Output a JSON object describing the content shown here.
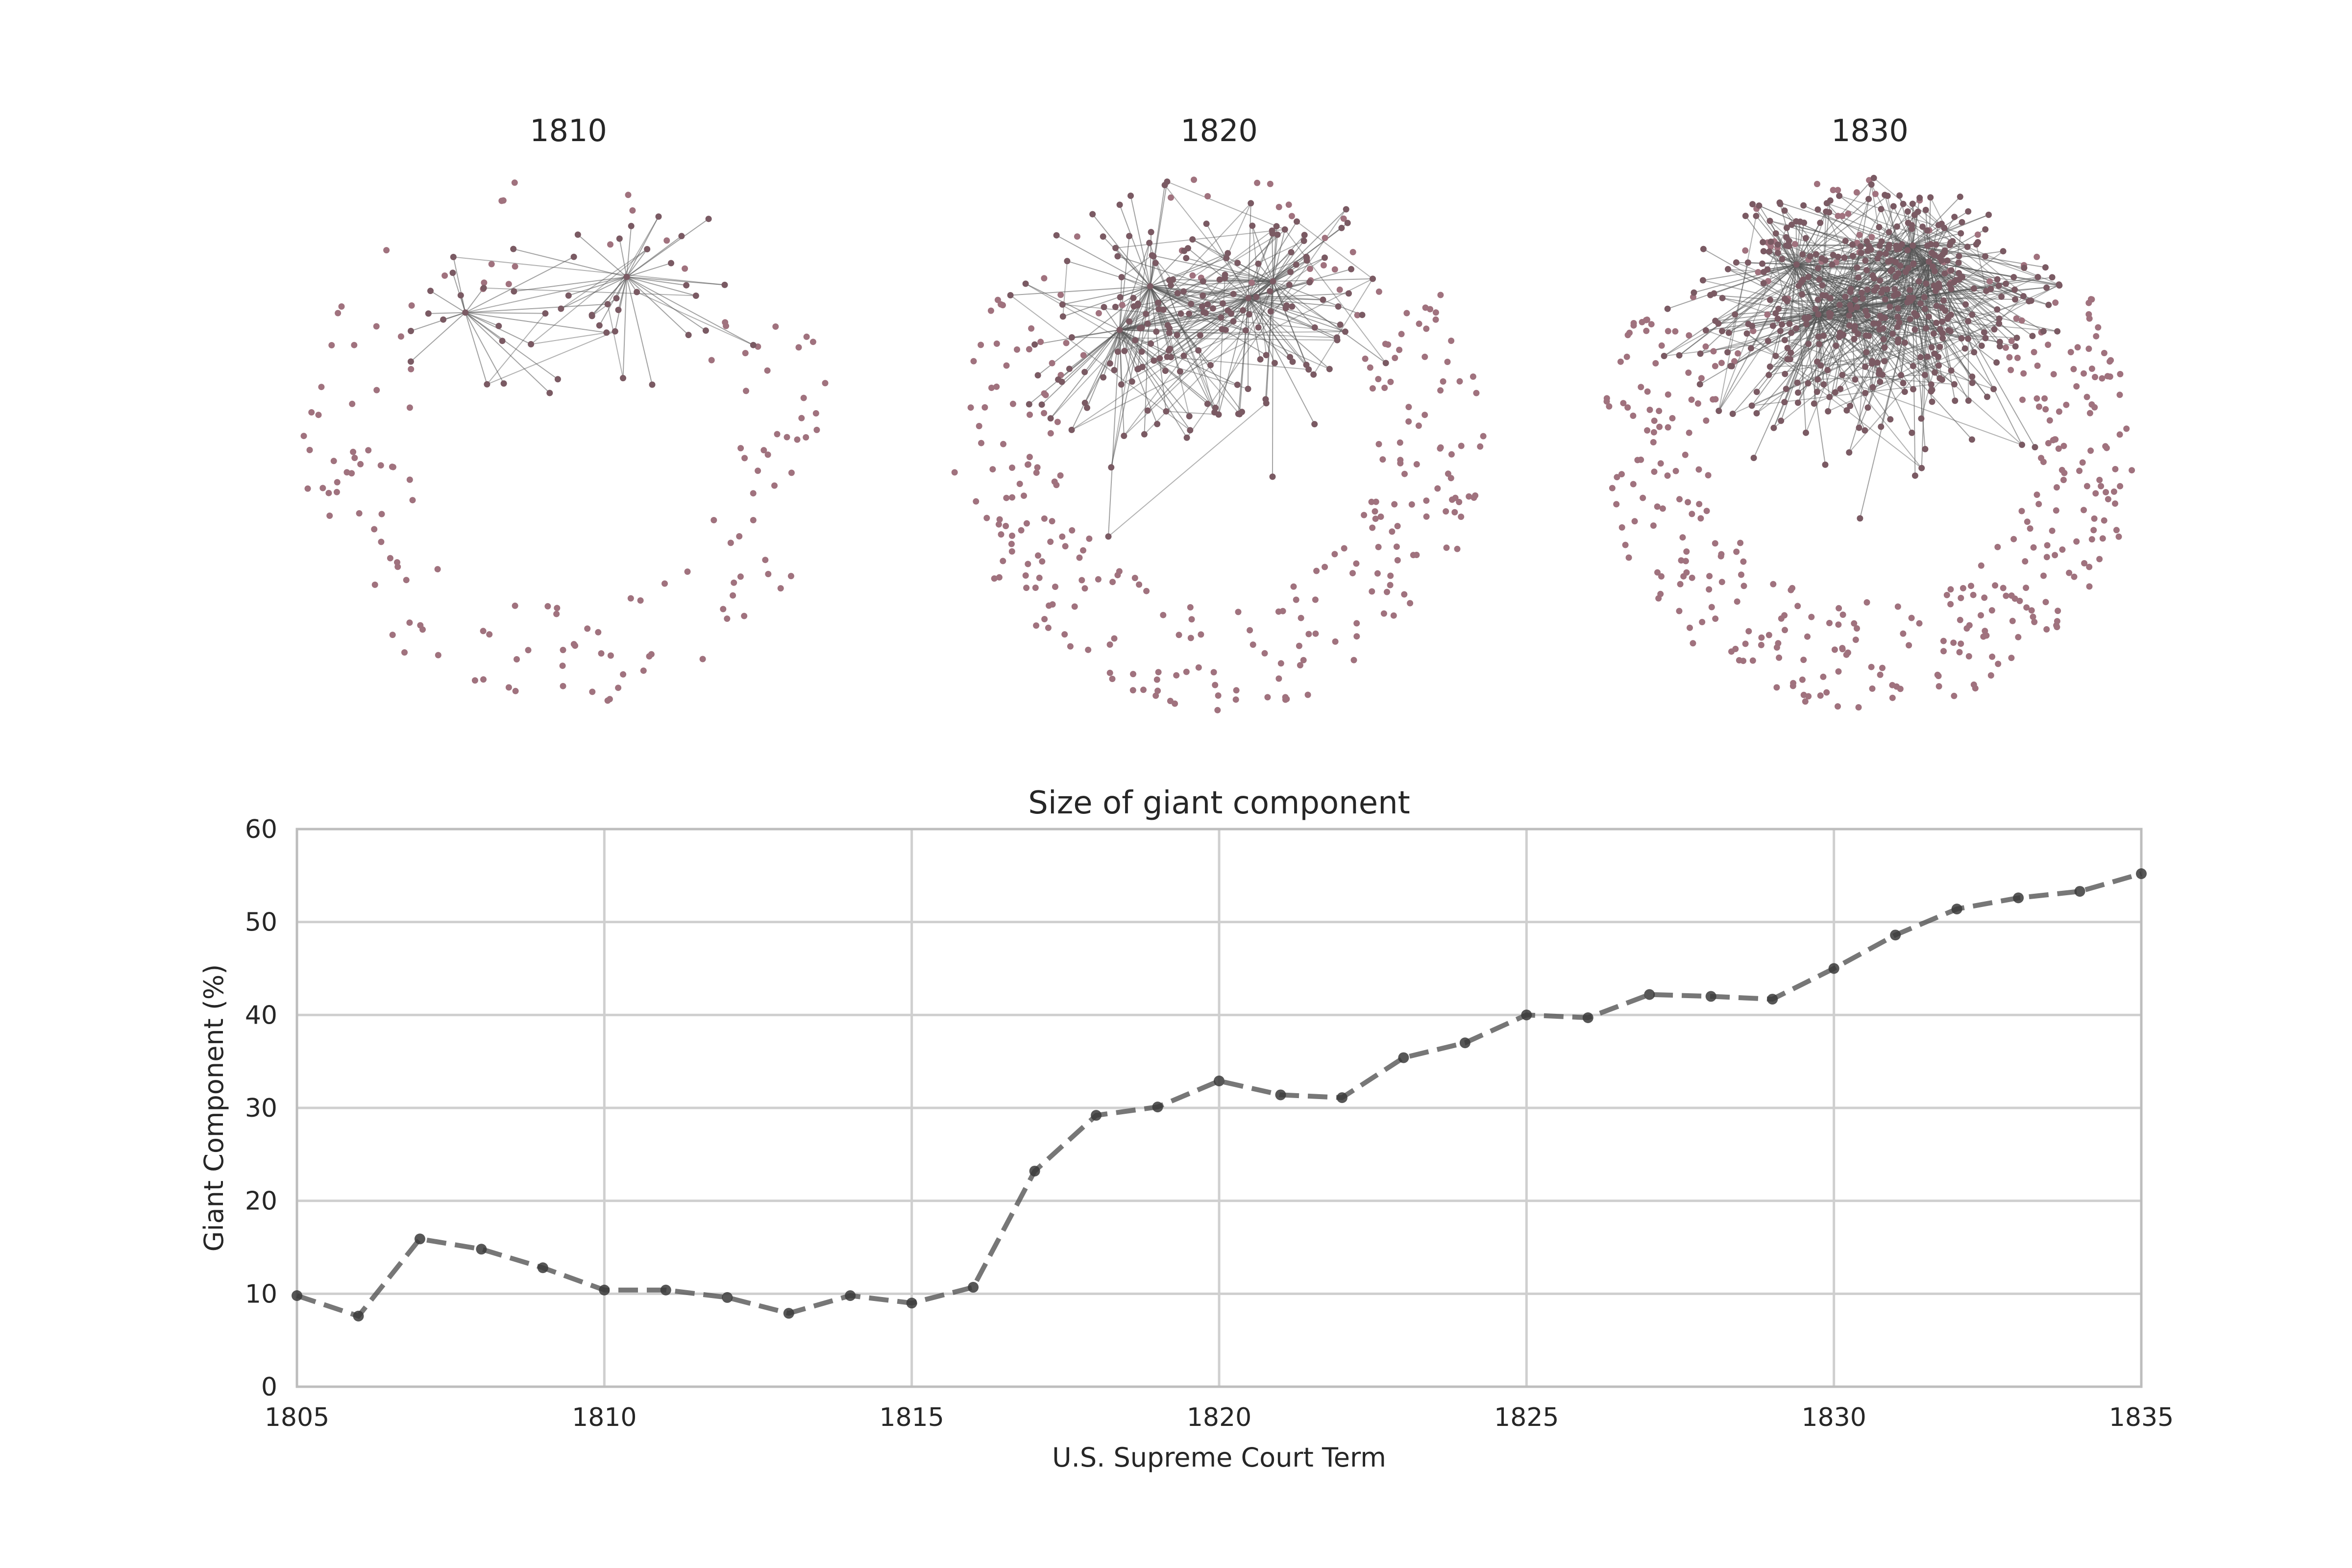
{
  "networks": [
    {
      "title": "1810"
    },
    {
      "title": "1820"
    },
    {
      "title": "1830"
    }
  ],
  "colors": {
    "node": "#a0727e",
    "edge": "#555555",
    "line": "#555555",
    "grid": "#cfcfcf",
    "axis": "#bdbdbd"
  },
  "chart_data": {
    "type": "line",
    "title": "Size of giant component",
    "xlabel": "U.S. Supreme Court Term",
    "ylabel": "Giant Component (%)",
    "xlim": [
      1805,
      1835
    ],
    "ylim": [
      0,
      60
    ],
    "xticks": [
      "1805",
      "1810",
      "1815",
      "1820",
      "1825",
      "1830",
      "1835"
    ],
    "yticks": [
      "0",
      "10",
      "20",
      "30",
      "40",
      "50",
      "60"
    ],
    "grid": true,
    "line_style": "dashed",
    "x": [
      1805,
      1806,
      1807,
      1808,
      1809,
      1810,
      1811,
      1812,
      1813,
      1814,
      1815,
      1816,
      1817,
      1818,
      1819,
      1820,
      1821,
      1822,
      1823,
      1824,
      1825,
      1826,
      1827,
      1828,
      1829,
      1830,
      1831,
      1832,
      1833,
      1834,
      1835
    ],
    "y": [
      9.8,
      7.6,
      15.9,
      14.8,
      12.8,
      10.4,
      10.4,
      9.6,
      7.9,
      9.8,
      9.0,
      10.7,
      23.2,
      29.2,
      30.1,
      32.9,
      31.4,
      31.1,
      35.4,
      37.0,
      40.0,
      39.7,
      42.2,
      42.0,
      41.7,
      45.0,
      48.6,
      51.4,
      52.6,
      53.3,
      55.2
    ]
  }
}
